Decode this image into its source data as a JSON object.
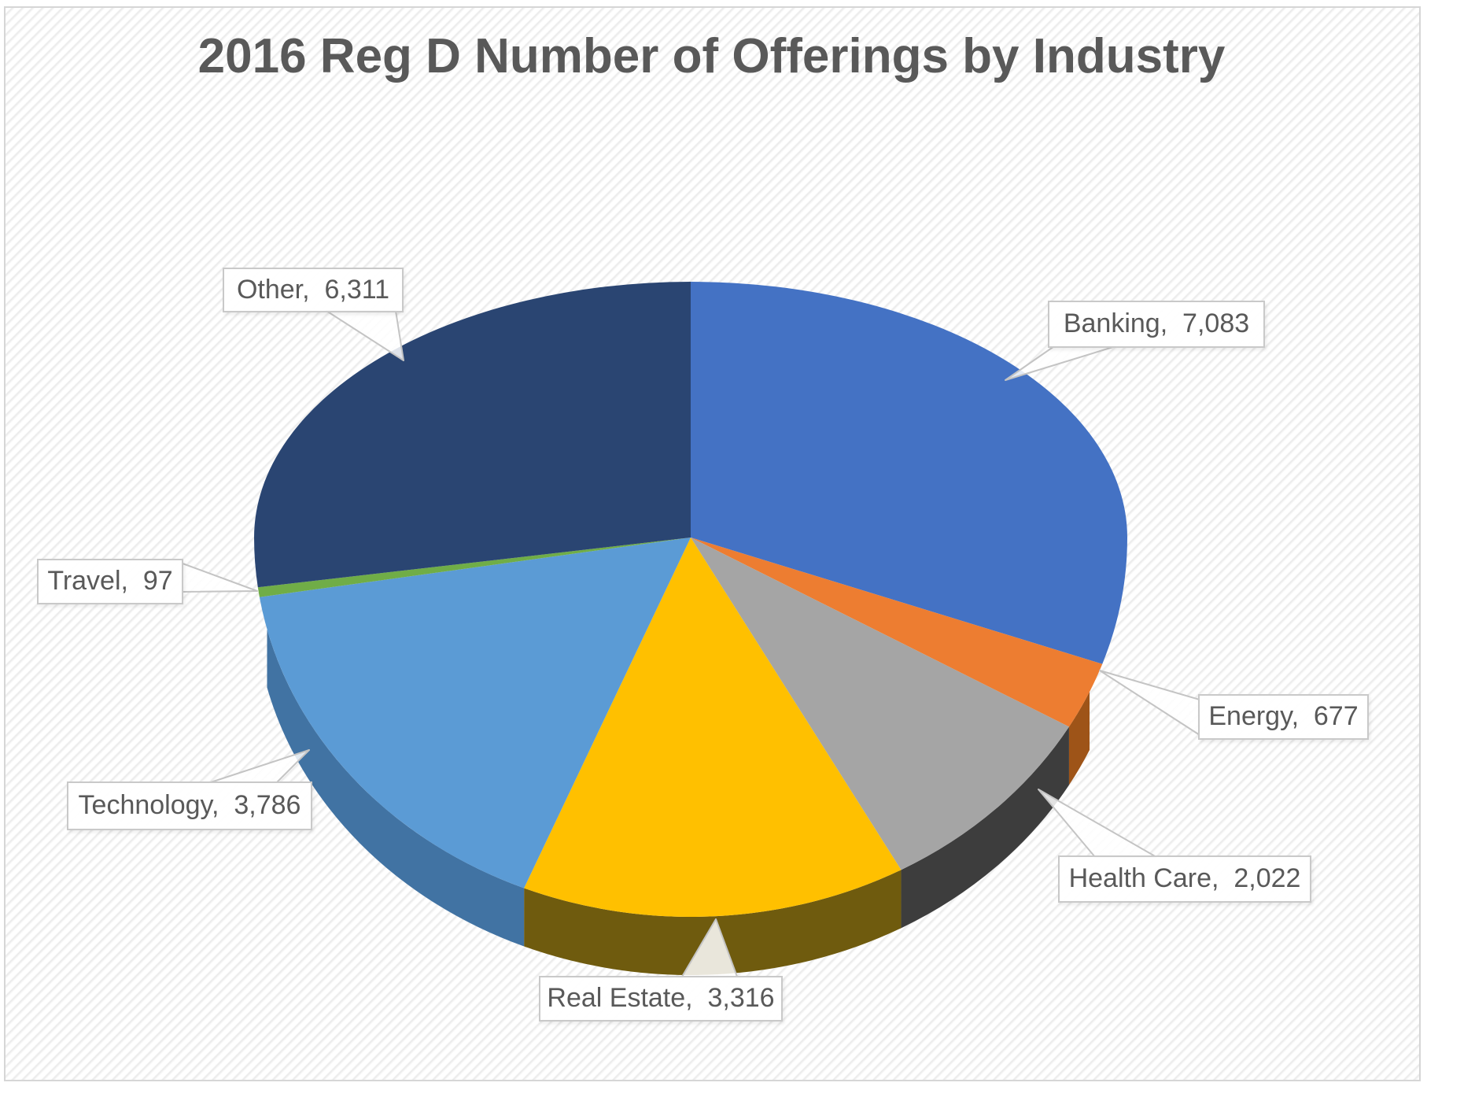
{
  "chart_data": {
    "type": "pie",
    "variant": "3d-pie",
    "title": "2016 Reg D Number of Offerings by Industry",
    "legend": "none",
    "direction": "clockwise",
    "start_angle_deg": 0,
    "total": 23292,
    "label_style": "category-and-value-callouts",
    "title_color": "#595959",
    "label_text_color": "#595959",
    "series": [
      {
        "label": "Banking",
        "value": 7083,
        "display": "Banking,  7,083",
        "color": "#4472C4",
        "side_color": "#2F5597"
      },
      {
        "label": "Energy",
        "value": 677,
        "display": "Energy,  677",
        "color": "#ED7D31",
        "side_color": "#9E5418"
      },
      {
        "label": "Health Care",
        "value": 2022,
        "display": "Health Care,  2,022",
        "color": "#A5A5A5",
        "side_color": "#3D3D3D"
      },
      {
        "label": "Real Estate",
        "value": 3316,
        "display": "Real Estate,  3,316",
        "color": "#FFC000",
        "side_color": "#6F5B0E"
      },
      {
        "label": "Technology",
        "value": 3786,
        "display": "Technology,  3,786",
        "color": "#5B9BD5",
        "side_color": "#4173A3"
      },
      {
        "label": "Travel",
        "value": 97,
        "display": "Travel,  97",
        "color": "#70AD47",
        "side_color": "#507E32"
      },
      {
        "label": "Other",
        "value": 6311,
        "display": "Other,  6,311",
        "color": "#2A4572",
        "side_color": "#16243F"
      }
    ]
  }
}
